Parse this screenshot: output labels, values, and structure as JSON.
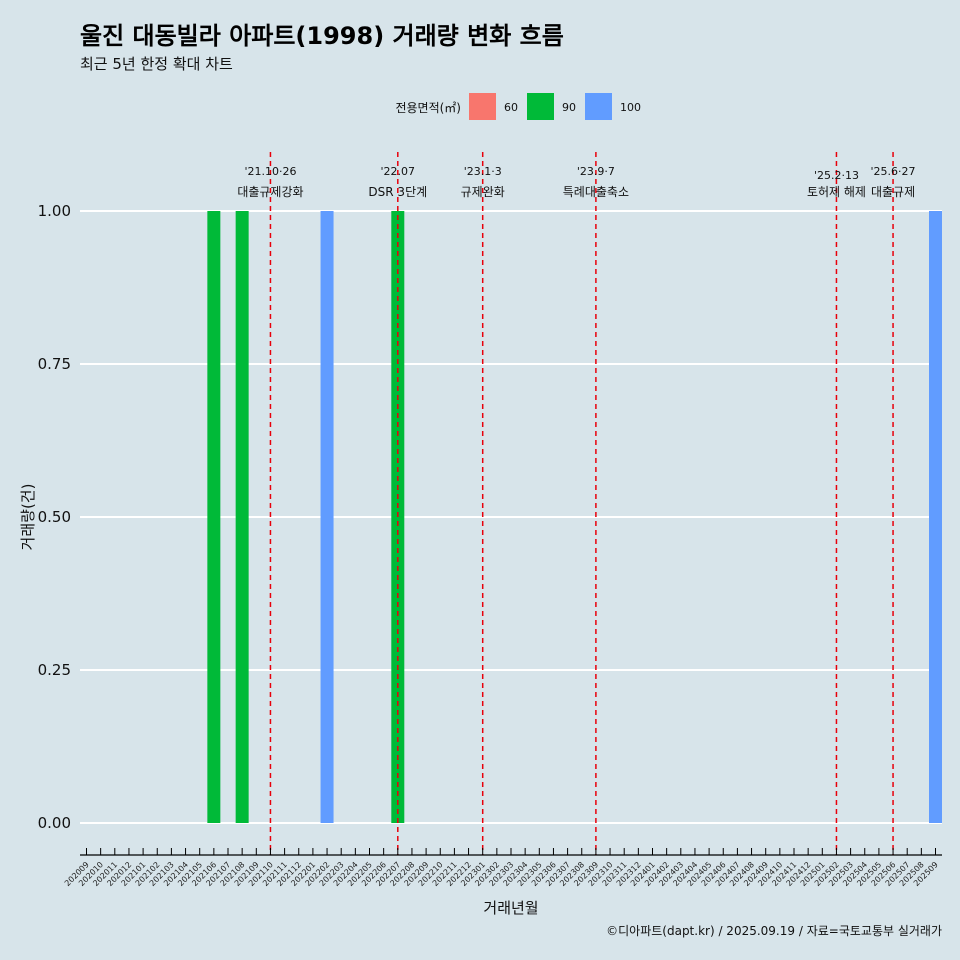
{
  "chart_data": {
    "type": "bar",
    "title": "울진 대동빌라 아파트(1998) 거래량 변화 흐름",
    "subtitle": "최근 5년 한정 확대 차트",
    "xlabel": "거래년월",
    "ylabel": "거래량(건)",
    "ylim": [
      0,
      1
    ],
    "y_ticks": [
      "0.00",
      "0.25",
      "0.50",
      "0.75",
      "1.00"
    ],
    "legend_title": "전용면적(㎡)",
    "legend_position": "top",
    "legend": [
      {
        "name": "60",
        "color": "#f8766d"
      },
      {
        "name": "90",
        "color": "#00ba38"
      },
      {
        "name": "100",
        "color": "#619cff"
      }
    ],
    "categories": [
      "202009",
      "202010",
      "202011",
      "202012",
      "202101",
      "202102",
      "202103",
      "202104",
      "202105",
      "202106",
      "202107",
      "202108",
      "202109",
      "202110",
      "202111",
      "202112",
      "202201",
      "202202",
      "202203",
      "202204",
      "202205",
      "202206",
      "202207",
      "202208",
      "202209",
      "202210",
      "202211",
      "202212",
      "202301",
      "202302",
      "202303",
      "202304",
      "202305",
      "202306",
      "202307",
      "202308",
      "202309",
      "202310",
      "202311",
      "202312",
      "202401",
      "202402",
      "202403",
      "202404",
      "202405",
      "202406",
      "202407",
      "202408",
      "202409",
      "202410",
      "202411",
      "202412",
      "202501",
      "202502",
      "202503",
      "202504",
      "202505",
      "202506",
      "202507",
      "202508",
      "202509"
    ],
    "series": [
      {
        "name": "90",
        "points": [
          {
            "x": "202106",
            "y": 1
          },
          {
            "x": "202108",
            "y": 1
          },
          {
            "x": "202207",
            "y": 1
          }
        ]
      },
      {
        "name": "100",
        "points": [
          {
            "x": "202202",
            "y": 1
          },
          {
            "x": "202509",
            "y": 1
          }
        ]
      }
    ],
    "annotations": [
      {
        "x": "202110",
        "date": "'21.10·26",
        "label": "대출규제강화"
      },
      {
        "x": "202207",
        "date": "'22.07",
        "label": "DSR 3단계"
      },
      {
        "x": "202301",
        "date": "'23.1·3",
        "label": "규제완화"
      },
      {
        "x": "202309",
        "date": "'23.9·7",
        "label": "특례대출축소"
      },
      {
        "x": "202502",
        "date": "'25.2·13",
        "label": "토허제 해제"
      },
      {
        "x": "202506",
        "date": "'25.6·27",
        "label": "대출규제"
      }
    ],
    "caption": "©디아파트(dapt.kr) / 2025.09.19 / 자료=국토교통부 실거래가"
  }
}
